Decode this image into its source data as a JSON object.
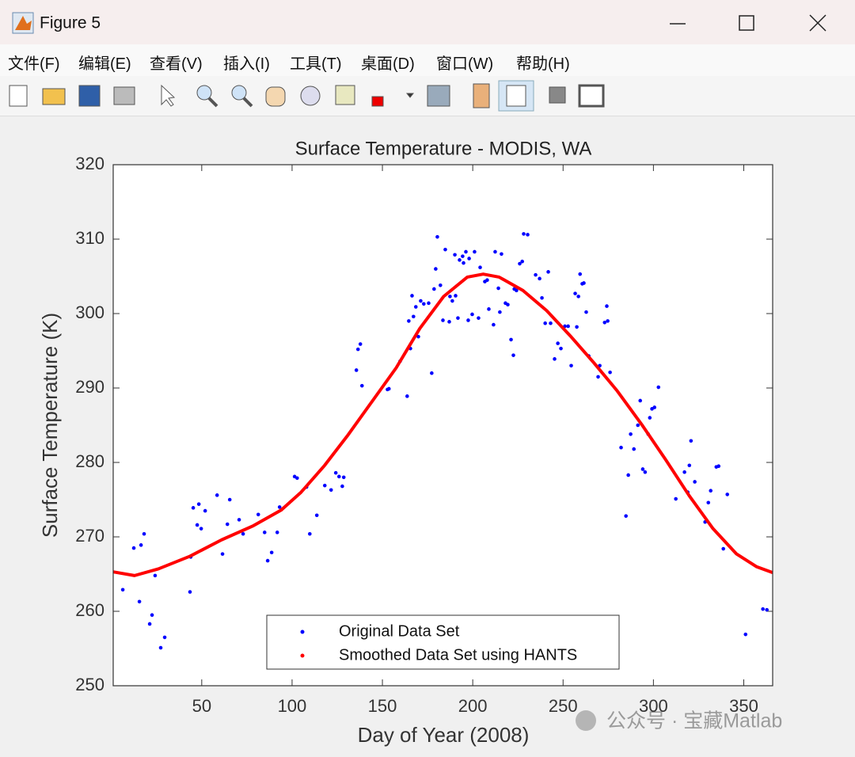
{
  "window": {
    "title": "Figure 5",
    "menus": [
      "文件(F)",
      "编辑(E)",
      "查看(V)",
      "插入(I)",
      "工具(T)",
      "桌面(D)",
      "窗口(W)",
      "帮助(H)"
    ],
    "watermark": "公众号 · 宝藏Matlab"
  },
  "chart_data": {
    "type": "scatter",
    "title": "Surface Temperature - MODIS, WA",
    "xlabel": "Day of Year (2008)",
    "ylabel": "Surface Temperature (K)",
    "xlim": [
      1,
      366
    ],
    "ylim": [
      250,
      320
    ],
    "xticks": [
      50,
      100,
      150,
      200,
      250,
      300,
      350
    ],
    "yticks": [
      250,
      260,
      270,
      280,
      290,
      300,
      310,
      320
    ],
    "legend": "lower center",
    "grid": false,
    "series": [
      {
        "name": "Original Data Set",
        "color": "#0000ff",
        "mode": "markers",
        "x": [
          6.3,
          12.4,
          15.5,
          16.4,
          18.1,
          21.2,
          22.5,
          24.2,
          27.3,
          29.5,
          43.5,
          43.9,
          45.3,
          47.5,
          48.4,
          49.7,
          51.9,
          58.5,
          61.5,
          64.2,
          65.5,
          70.7,
          72.9,
          81.3,
          84.8,
          86.5,
          88.7,
          91.8,
          93.1,
          101.4,
          102.8,
          108.0,
          109.8,
          113.7,
          118.1,
          121.6,
          124.2,
          126.0,
          127.8,
          128.6,
          135.6,
          136.5,
          137.8,
          138.7,
          152.8,
          153.6,
          159.8,
          163.7,
          164.6,
          165.5,
          166.4,
          167.2,
          168.5,
          169.9,
          171.2,
          172.9,
          175.6,
          177.3,
          178.6,
          179.5,
          180.4,
          182.1,
          183.5,
          184.8,
          187.0,
          187.4,
          188.7,
          190.5,
          190.1,
          191.8,
          192.7,
          194.4,
          194.9,
          196.2,
          197.5,
          198.0,
          199.7,
          201.0,
          203.2,
          204.1,
          206.7,
          208.0,
          208.9,
          211.5,
          212.4,
          214.2,
          215.0,
          215.9,
          218.1,
          219.4,
          221.2,
          222.5,
          223.0,
          224.2,
          226.0,
          227.4,
          228.2,
          230.4,
          234.8,
          237.0,
          238.3,
          240.1,
          241.8,
          243.1,
          245.3,
          247.1,
          248.8,
          251.0,
          252.8,
          254.5,
          256.7,
          257.6,
          258.5,
          259.4,
          260.6,
          261.5,
          262.8,
          264.2,
          269.4,
          270.3,
          273.0,
          274.2,
          274.7,
          276.0,
          282.1,
          284.8,
          286.1,
          287.4,
          289.2,
          291.4,
          292.7,
          294.1,
          295.4,
          297.1,
          298.0,
          299.2,
          300.6,
          302.8,
          312.4,
          317.2,
          319.0,
          319.9,
          320.8,
          322.9,
          328.6,
          330.4,
          331.7,
          334.8,
          336.1,
          338.7,
          340.9,
          351.0,
          360.6,
          362.8
        ],
        "values": [
          262.9,
          268.5,
          261.3,
          268.9,
          270.4,
          258.3,
          259.5,
          264.8,
          255.1,
          256.5,
          262.6,
          267.3,
          273.9,
          271.6,
          274.4,
          271.1,
          273.5,
          275.6,
          267.7,
          271.7,
          275.0,
          272.3,
          270.4,
          273.0,
          270.6,
          266.8,
          267.9,
          270.6,
          274.0,
          278.1,
          277.9,
          276.7,
          270.4,
          272.9,
          276.9,
          276.3,
          278.6,
          278.1,
          276.8,
          278.0,
          292.4,
          295.2,
          295.9,
          290.3,
          289.8,
          289.9,
          293.6,
          288.9,
          299.0,
          295.3,
          302.4,
          299.6,
          300.9,
          296.9,
          301.7,
          301.3,
          301.4,
          292.0,
          303.3,
          306.0,
          310.3,
          303.8,
          299.1,
          308.6,
          298.9,
          302.3,
          301.7,
          302.4,
          307.9,
          299.4,
          307.2,
          307.7,
          306.8,
          308.3,
          299.1,
          307.4,
          299.9,
          308.3,
          299.4,
          306.2,
          304.3,
          304.5,
          300.6,
          298.5,
          308.3,
          303.4,
          300.2,
          308.0,
          301.4,
          301.2,
          296.5,
          294.4,
          303.3,
          303.1,
          306.7,
          307.0,
          310.7,
          310.6,
          305.2,
          304.7,
          302.1,
          298.7,
          305.6,
          298.7,
          293.9,
          296.0,
          295.3,
          298.3,
          298.3,
          293.0,
          302.7,
          298.2,
          302.3,
          305.3,
          304.0,
          304.1,
          300.2,
          294.3,
          291.5,
          293.0,
          298.8,
          301.0,
          299.0,
          292.1,
          282.0,
          272.8,
          278.3,
          283.8,
          281.8,
          285.0,
          288.3,
          279.1,
          278.7,
          283.8,
          286.0,
          287.2,
          287.4,
          290.1,
          275.1,
          278.7,
          276.0,
          279.6,
          282.9,
          277.4,
          272.0,
          274.6,
          276.2,
          279.4,
          279.5,
          268.4,
          275.7,
          256.9,
          260.3,
          260.2
        ]
      },
      {
        "name": "Smoothed Data Set using HANTS",
        "color": "#ff0000",
        "mode": "line",
        "x": [
          1,
          12.8,
          26,
          43.5,
          61,
          78.6,
          94,
          105,
          118,
          131,
          144,
          157.6,
          170.7,
          183.9,
          197,
          205.8,
          214.6,
          227.8,
          240.9,
          254,
          267,
          280,
          293.5,
          306.7,
          319.9,
          333,
          346,
          357,
          366
        ],
        "values": [
          265.3,
          264.8,
          265.7,
          267.4,
          269.6,
          271.5,
          273.6,
          276.0,
          279.6,
          283.7,
          288.1,
          292.7,
          298.0,
          302.3,
          304.9,
          305.3,
          304.9,
          303.1,
          300.4,
          297.0,
          293.4,
          289.6,
          285.1,
          280.4,
          275.5,
          271.1,
          267.7,
          266.0,
          265.2
        ]
      }
    ]
  }
}
